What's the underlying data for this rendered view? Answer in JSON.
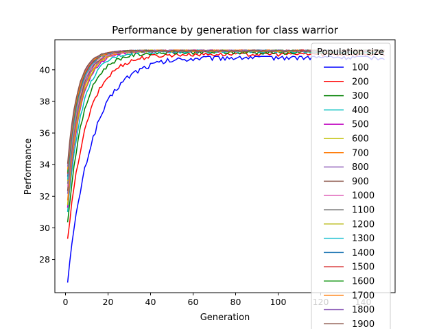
{
  "chart_data": {
    "type": "line",
    "title": "Performance by generation for class warrior",
    "xlabel": "Generation",
    "ylabel": "Performance",
    "xlim": [
      -5,
      155
    ],
    "ylim": [
      25.9,
      41.9
    ],
    "xticks": [
      0,
      20,
      40,
      60,
      80,
      100,
      120,
      140
    ],
    "yticks": [
      28,
      30,
      32,
      34,
      36,
      38,
      40
    ],
    "legend": {
      "title": "Population size",
      "placement": "right"
    },
    "grid": false,
    "generations": 150,
    "series": [
      {
        "name": "100",
        "color": "#0000ff",
        "start": 26.7,
        "plateau": 40.8,
        "rate": 0.085,
        "noise": 0.18
      },
      {
        "name": "200",
        "color": "#ff0000",
        "start": 29.2,
        "plateau": 41.0,
        "rate": 0.11,
        "noise": 0.14
      },
      {
        "name": "300",
        "color": "#008000",
        "start": 30.3,
        "plateau": 41.1,
        "rate": 0.135,
        "noise": 0.12
      },
      {
        "name": "400",
        "color": "#00bfbf",
        "start": 31.0,
        "plateau": 41.15,
        "rate": 0.15,
        "noise": 0.1
      },
      {
        "name": "500",
        "color": "#bf00bf",
        "start": 31.3,
        "plateau": 41.2,
        "rate": 0.165,
        "noise": 0.09
      },
      {
        "name": "600",
        "color": "#bfbf00",
        "start": 31.5,
        "plateau": 41.2,
        "rate": 0.17,
        "noise": 0.08
      },
      {
        "name": "700",
        "color": "#ff7f0e",
        "start": 31.8,
        "plateau": 41.2,
        "rate": 0.175,
        "noise": 0.08
      },
      {
        "name": "800",
        "color": "#9467bd",
        "start": 32.1,
        "plateau": 41.2,
        "rate": 0.18,
        "noise": 0.07
      },
      {
        "name": "900",
        "color": "#8c564b",
        "start": 32.3,
        "plateau": 41.2,
        "rate": 0.185,
        "noise": 0.07
      },
      {
        "name": "1000",
        "color": "#e377c2",
        "start": 32.6,
        "plateau": 41.2,
        "rate": 0.19,
        "noise": 0.06
      },
      {
        "name": "1100",
        "color": "#7f7f7f",
        "start": 32.8,
        "plateau": 41.2,
        "rate": 0.195,
        "noise": 0.06
      },
      {
        "name": "1200",
        "color": "#bcbd22",
        "start": 33.0,
        "plateau": 41.2,
        "rate": 0.2,
        "noise": 0.06
      },
      {
        "name": "1300",
        "color": "#17becf",
        "start": 33.1,
        "plateau": 41.2,
        "rate": 0.2,
        "noise": 0.05
      },
      {
        "name": "1400",
        "color": "#1f77b4",
        "start": 33.2,
        "plateau": 41.2,
        "rate": 0.205,
        "noise": 0.05
      },
      {
        "name": "1500",
        "color": "#d62728",
        "start": 33.4,
        "plateau": 41.2,
        "rate": 0.205,
        "noise": 0.05
      },
      {
        "name": "1600",
        "color": "#2ca02c",
        "start": 33.5,
        "plateau": 41.2,
        "rate": 0.21,
        "noise": 0.05
      },
      {
        "name": "1700",
        "color": "#ff7f0e",
        "start": 33.7,
        "plateau": 41.2,
        "rate": 0.21,
        "noise": 0.05
      },
      {
        "name": "1800",
        "color": "#9467bd",
        "start": 33.9,
        "plateau": 41.2,
        "rate": 0.215,
        "noise": 0.05
      },
      {
        "name": "1900",
        "color": "#8c564b",
        "start": 34.1,
        "plateau": 41.2,
        "rate": 0.215,
        "noise": 0.05
      }
    ]
  }
}
